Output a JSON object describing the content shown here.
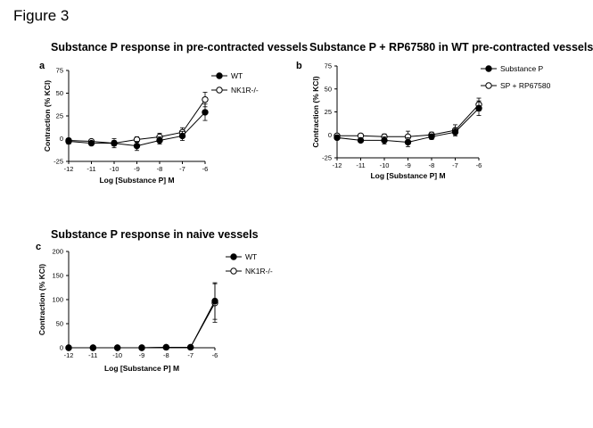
{
  "figure_title": "Figure 3",
  "chart_data": [
    {
      "panel": "a",
      "type": "line",
      "title": "Substance P response in pre-contracted vessels",
      "xlabel": "Log [Substance P] M",
      "ylabel": "Contraction (% KCl)",
      "x": [
        -12,
        -11,
        -10,
        -9,
        -8,
        -7,
        -6
      ],
      "xticks": [
        "-12",
        "-11",
        "-10",
        "-9",
        "-8",
        "-7",
        "-6"
      ],
      "xlim": [
        -12,
        -6
      ],
      "ylim": [
        -25,
        75
      ],
      "yticks": [
        "-25",
        "0",
        "25",
        "50",
        "75"
      ],
      "legend_position": "top-right",
      "series": [
        {
          "name": "WT",
          "marker": "filled",
          "values": [
            -3,
            -5,
            -5,
            -8,
            -2,
            3,
            29
          ],
          "errors": [
            3,
            2,
            5,
            5,
            4,
            5,
            9
          ]
        },
        {
          "name": "NK1R-/-",
          "marker": "open",
          "values": [
            -2,
            -3,
            -5,
            -1,
            2,
            7,
            43
          ],
          "errors": [
            2,
            2,
            3,
            3,
            4,
            5,
            8
          ]
        }
      ]
    },
    {
      "panel": "b",
      "type": "line",
      "title": "Substance P + RP67580 in WT pre-contracted vessels",
      "xlabel": "Log [Substance P] M",
      "ylabel": "Contraction (% KCl)",
      "x": [
        -12,
        -11,
        -10,
        -9,
        -8,
        -7,
        -6
      ],
      "xticks": [
        "-12",
        "-11",
        "-10",
        "-9",
        "-8",
        "-7",
        "-6"
      ],
      "xlim": [
        -12,
        -6
      ],
      "ylim": [
        -25,
        75
      ],
      "yticks": [
        "-25",
        "0",
        "25",
        "50",
        "75"
      ],
      "legend_position": "top-right",
      "series": [
        {
          "name": "Substance P",
          "marker": "filled",
          "values": [
            -3,
            -6,
            -6,
            -8,
            -2,
            3,
            29
          ],
          "errors": [
            2,
            2,
            4,
            5,
            3,
            4,
            8
          ]
        },
        {
          "name": "SP  + RP67580",
          "marker": "open",
          "values": [
            -1,
            -1,
            -2,
            -2,
            0,
            5,
            33
          ],
          "errors": [
            2,
            2,
            3,
            6,
            3,
            6,
            7
          ]
        }
      ]
    },
    {
      "panel": "c",
      "type": "line",
      "title": "Substance P response in naive vessels",
      "xlabel": "Log [Substance P] M",
      "ylabel": "Contraction (% KCl)",
      "x": [
        -12,
        -11,
        -10,
        -9,
        -8,
        -7,
        -6
      ],
      "xticks": [
        "-12",
        "-11",
        "-10",
        "-9",
        "-8",
        "-7",
        "-6"
      ],
      "xlim": [
        -12,
        -6
      ],
      "ylim": [
        0,
        200
      ],
      "yticks": [
        "0",
        "50",
        "100",
        "150",
        "200"
      ],
      "legend_position": "top-right",
      "series": [
        {
          "name": "WT",
          "marker": "filled",
          "values": [
            0,
            0,
            0,
            0,
            1,
            1,
            97
          ],
          "errors": [
            0,
            0,
            0,
            0,
            1,
            1,
            38
          ]
        },
        {
          "name": "NK1R-/-",
          "marker": "open",
          "values": [
            0,
            0,
            0,
            0,
            1,
            1,
            93
          ],
          "errors": [
            0,
            0,
            0,
            0,
            1,
            1,
            40
          ]
        }
      ]
    }
  ]
}
